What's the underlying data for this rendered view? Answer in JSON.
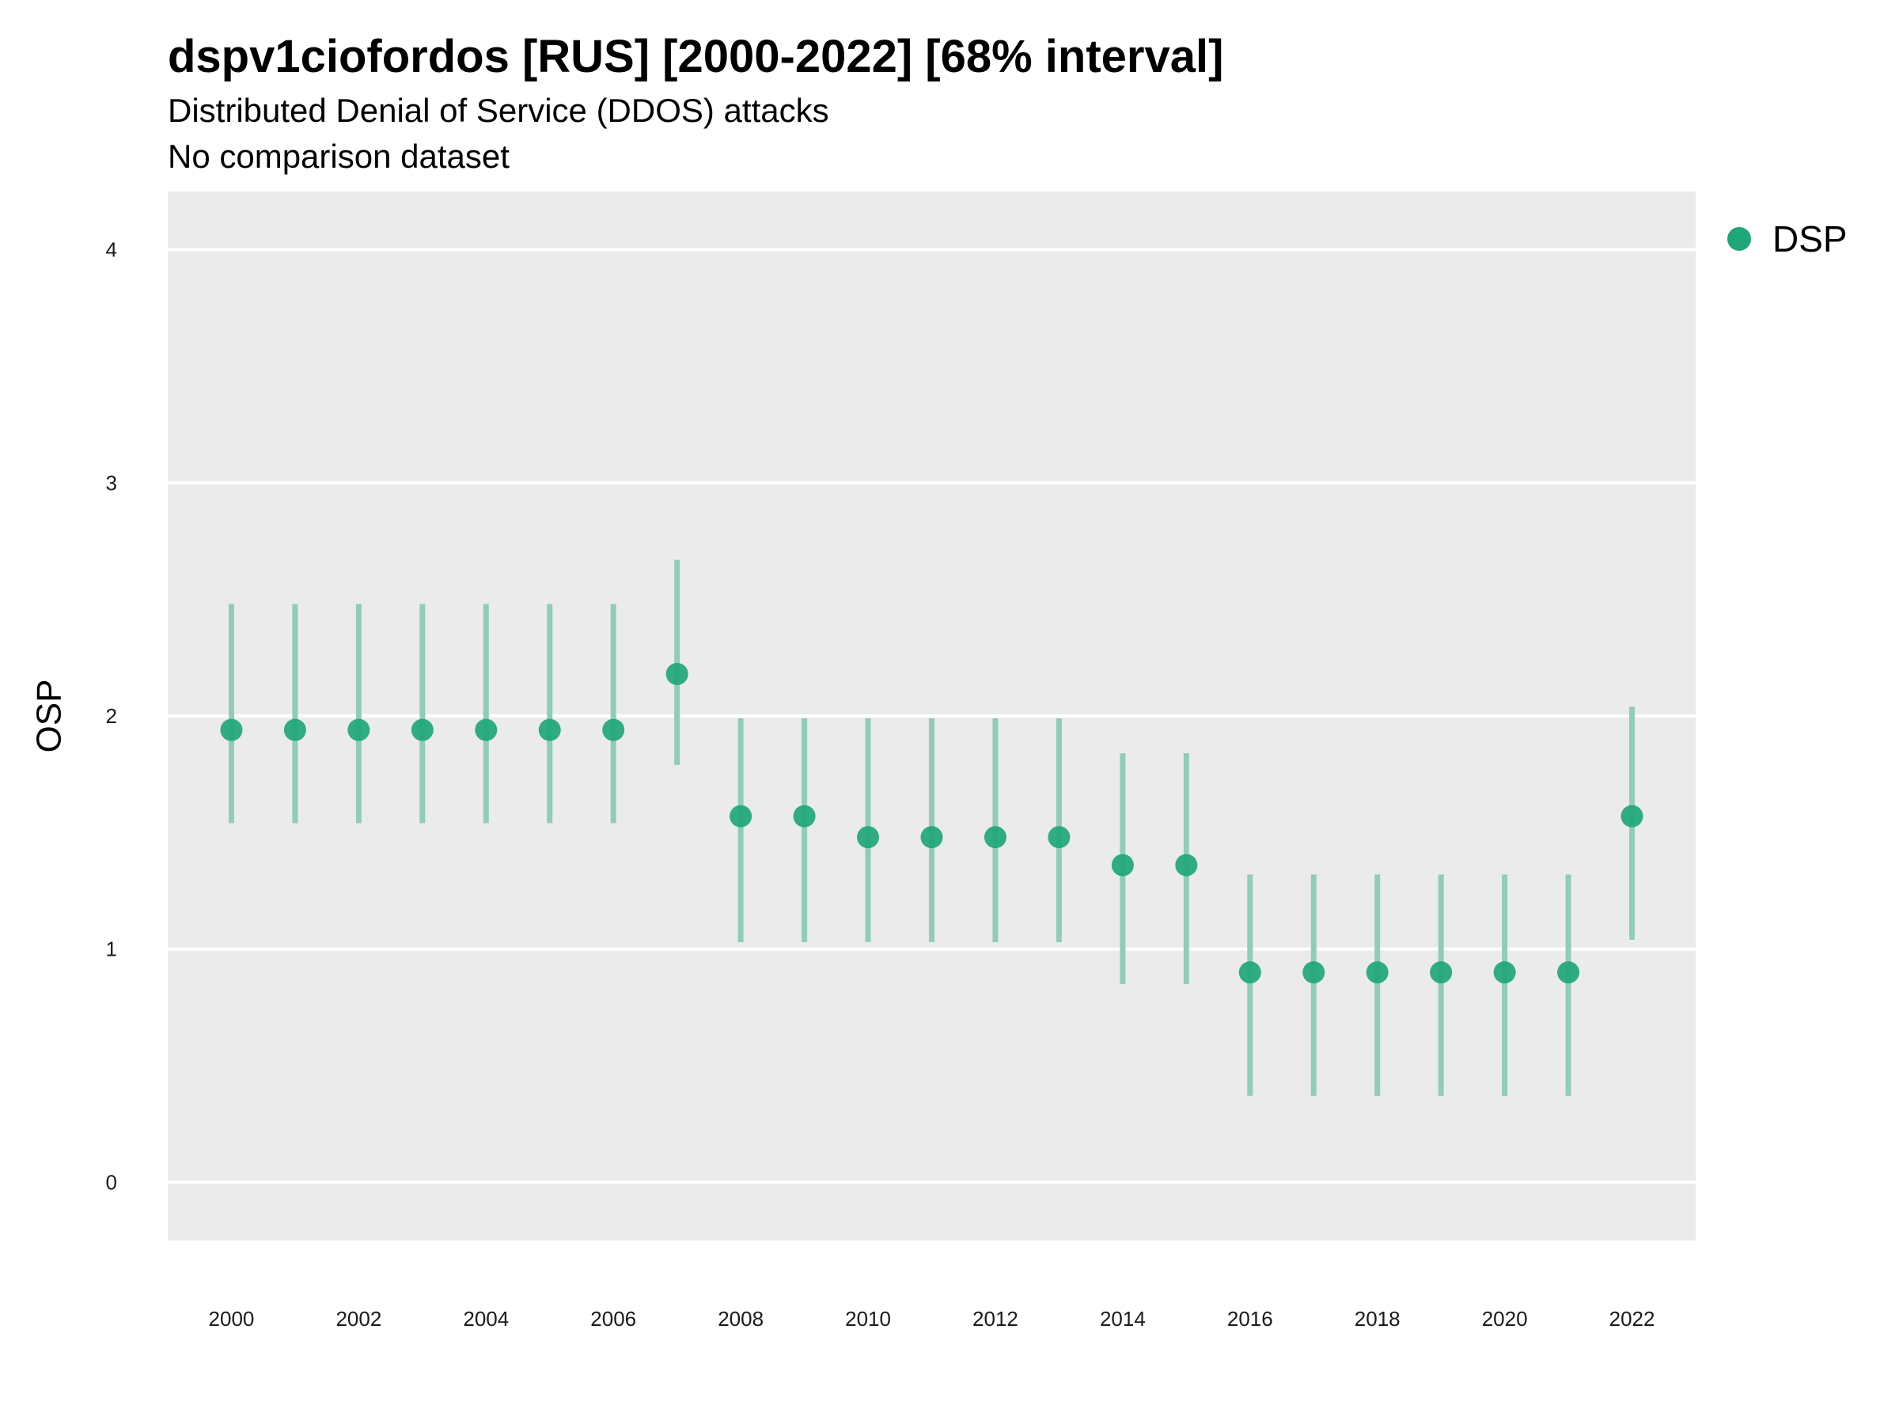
{
  "chart_data": {
    "type": "scatter",
    "title": "dspv1ciofordos [RUS] [2000-2022] [68% interval]",
    "subtitle": "Distributed Denial of Service (DDOS) attacks",
    "caption": "No comparison dataset",
    "xlabel": "",
    "ylabel": "OSP",
    "xlim": [
      1999,
      2023
    ],
    "ylim": [
      -0.25,
      4.25
    ],
    "x_ticks": [
      2000,
      2002,
      2004,
      2006,
      2008,
      2010,
      2012,
      2014,
      2016,
      2018,
      2020,
      2022
    ],
    "y_ticks": [
      0,
      1,
      2,
      3,
      4
    ],
    "grid": true,
    "legend_position": "top-right",
    "series": [
      {
        "name": "DSP",
        "color": "#1fa67a",
        "interval_color": "#8fcdb7",
        "points": [
          {
            "x": 2000,
            "y": 1.94,
            "low": 1.54,
            "high": 2.48
          },
          {
            "x": 2001,
            "y": 1.94,
            "low": 1.54,
            "high": 2.48
          },
          {
            "x": 2002,
            "y": 1.94,
            "low": 1.54,
            "high": 2.48
          },
          {
            "x": 2003,
            "y": 1.94,
            "low": 1.54,
            "high": 2.48
          },
          {
            "x": 2004,
            "y": 1.94,
            "low": 1.54,
            "high": 2.48
          },
          {
            "x": 2005,
            "y": 1.94,
            "low": 1.54,
            "high": 2.48
          },
          {
            "x": 2006,
            "y": 1.94,
            "low": 1.54,
            "high": 2.48
          },
          {
            "x": 2007,
            "y": 2.18,
            "low": 1.79,
            "high": 2.67
          },
          {
            "x": 2008,
            "y": 1.57,
            "low": 1.03,
            "high": 1.99
          },
          {
            "x": 2009,
            "y": 1.57,
            "low": 1.03,
            "high": 1.99
          },
          {
            "x": 2010,
            "y": 1.48,
            "low": 1.03,
            "high": 1.99
          },
          {
            "x": 2011,
            "y": 1.48,
            "low": 1.03,
            "high": 1.99
          },
          {
            "x": 2012,
            "y": 1.48,
            "low": 1.03,
            "high": 1.99
          },
          {
            "x": 2013,
            "y": 1.48,
            "low": 1.03,
            "high": 1.99
          },
          {
            "x": 2014,
            "y": 1.36,
            "low": 0.85,
            "high": 1.84
          },
          {
            "x": 2015,
            "y": 1.36,
            "low": 0.85,
            "high": 1.84
          },
          {
            "x": 2016,
            "y": 0.9,
            "low": 0.37,
            "high": 1.32
          },
          {
            "x": 2017,
            "y": 0.9,
            "low": 0.37,
            "high": 1.32
          },
          {
            "x": 2018,
            "y": 0.9,
            "low": 0.37,
            "high": 1.32
          },
          {
            "x": 2019,
            "y": 0.9,
            "low": 0.37,
            "high": 1.32
          },
          {
            "x": 2020,
            "y": 0.9,
            "low": 0.37,
            "high": 1.32
          },
          {
            "x": 2021,
            "y": 0.9,
            "low": 0.37,
            "high": 1.32
          },
          {
            "x": 2022,
            "y": 1.57,
            "low": 1.04,
            "high": 2.04
          }
        ]
      }
    ]
  },
  "colors": {
    "panel_background": "#ebebeb",
    "grid": "#ffffff"
  }
}
